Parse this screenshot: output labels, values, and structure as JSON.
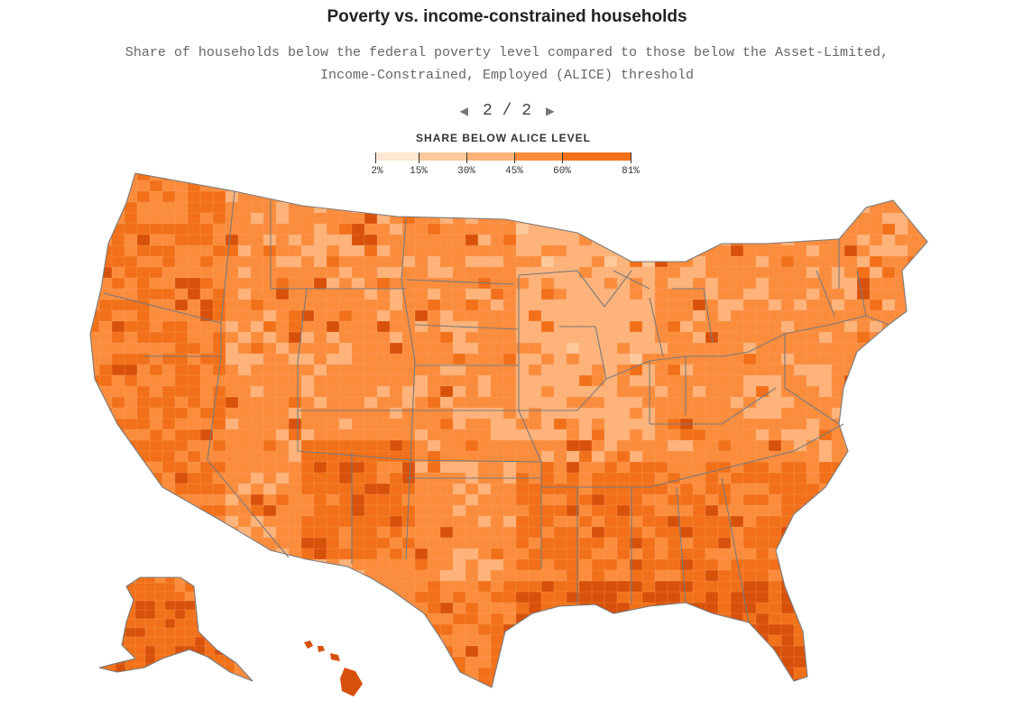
{
  "header": {
    "title": "Poverty vs. income-constrained households",
    "subtitle": "Share of households below the federal poverty level compared to those below the Asset-Limited, Income-Constrained, Employed (ALICE) threshold"
  },
  "pager": {
    "prev_icon": "triangle-left",
    "next_icon": "triangle-right",
    "label": "2 / 2"
  },
  "legend": {
    "title": "SHARE BELOW ALICE LEVEL",
    "ticks": [
      "2%",
      "15%",
      "30%",
      "45%",
      "60%",
      "81%"
    ],
    "colors": [
      "#fde7d2",
      "#fdc99a",
      "#fdb37a",
      "#fb8c3c",
      "#f27019",
      "#d8510a"
    ]
  },
  "map": {
    "region": "United States counties",
    "border_color": "#7a7a7a"
  }
}
